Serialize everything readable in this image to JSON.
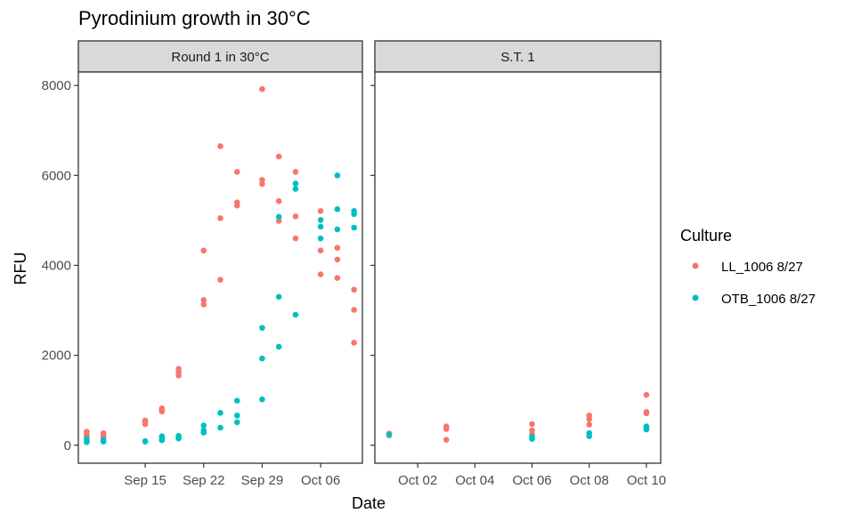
{
  "title": "Pyrodinium growth in 30°C",
  "chart_data": [
    {
      "type": "scatter",
      "facet": "Round 1 in 30°C",
      "xlabel": "Date",
      "ylabel": "RFU",
      "ylim": [
        -400,
        8300
      ],
      "xlim": [
        "2023-09-07",
        "2023-10-11"
      ],
      "yticks": [
        0,
        2000,
        4000,
        6000,
        8000
      ],
      "xticks": [
        {
          "date": "2023-09-15",
          "label": "Sep 15"
        },
        {
          "date": "2023-09-22",
          "label": "Sep 22"
        },
        {
          "date": "2023-09-29",
          "label": "Sep 29"
        },
        {
          "date": "2023-10-06",
          "label": "Oct 06"
        }
      ],
      "series": [
        {
          "name": "LL_1006 8/27",
          "color": "#F8766D",
          "points": [
            [
              "2023-09-08",
              300
            ],
            [
              "2023-09-08",
              250
            ],
            [
              "2023-09-08",
              200
            ],
            [
              "2023-09-10",
              270
            ],
            [
              "2023-09-10",
              220
            ],
            [
              "2023-09-10",
              180
            ],
            [
              "2023-09-15",
              550
            ],
            [
              "2023-09-15",
              500
            ],
            [
              "2023-09-15",
              470
            ],
            [
              "2023-09-17",
              820
            ],
            [
              "2023-09-17",
              780
            ],
            [
              "2023-09-17",
              750
            ],
            [
              "2023-09-19",
              1700
            ],
            [
              "2023-09-19",
              1620
            ],
            [
              "2023-09-19",
              1550
            ],
            [
              "2023-09-22",
              4330
            ],
            [
              "2023-09-22",
              3230
            ],
            [
              "2023-09-22",
              3130
            ],
            [
              "2023-09-24",
              6650
            ],
            [
              "2023-09-24",
              5050
            ],
            [
              "2023-09-24",
              3680
            ],
            [
              "2023-09-26",
              6080
            ],
            [
              "2023-09-26",
              5400
            ],
            [
              "2023-09-26",
              5330
            ],
            [
              "2023-09-29",
              7920
            ],
            [
              "2023-09-29",
              5900
            ],
            [
              "2023-09-29",
              5810
            ],
            [
              "2023-10-01",
              6420
            ],
            [
              "2023-10-01",
              5430
            ],
            [
              "2023-10-01",
              4990
            ],
            [
              "2023-10-03",
              6080
            ],
            [
              "2023-10-03",
              5090
            ],
            [
              "2023-10-03",
              4600
            ],
            [
              "2023-10-06",
              5210
            ],
            [
              "2023-10-06",
              4330
            ],
            [
              "2023-10-06",
              3800
            ],
            [
              "2023-10-08",
              4390
            ],
            [
              "2023-10-08",
              4130
            ],
            [
              "2023-10-08",
              3720
            ],
            [
              "2023-10-10",
              3460
            ],
            [
              "2023-10-10",
              3010
            ],
            [
              "2023-10-10",
              2280
            ]
          ]
        },
        {
          "name": "OTB_1006 8/27",
          "color": "#00BFC4",
          "points": [
            [
              "2023-09-08",
              140
            ],
            [
              "2023-09-08",
              90
            ],
            [
              "2023-09-08",
              70
            ],
            [
              "2023-09-10",
              120
            ],
            [
              "2023-09-10",
              80
            ],
            [
              "2023-09-15",
              90
            ],
            [
              "2023-09-15",
              80
            ],
            [
              "2023-09-17",
              200
            ],
            [
              "2023-09-17",
              140
            ],
            [
              "2023-09-17",
              110
            ],
            [
              "2023-09-19",
              210
            ],
            [
              "2023-09-19",
              170
            ],
            [
              "2023-09-19",
              150
            ],
            [
              "2023-09-22",
              440
            ],
            [
              "2023-09-22",
              330
            ],
            [
              "2023-09-22",
              280
            ],
            [
              "2023-09-24",
              720
            ],
            [
              "2023-09-24",
              390
            ],
            [
              "2023-09-26",
              990
            ],
            [
              "2023-09-26",
              660
            ],
            [
              "2023-09-26",
              510
            ],
            [
              "2023-09-29",
              2610
            ],
            [
              "2023-09-29",
              1930
            ],
            [
              "2023-09-29",
              1020
            ],
            [
              "2023-10-01",
              5080
            ],
            [
              "2023-10-01",
              3300
            ],
            [
              "2023-10-01",
              2190
            ],
            [
              "2023-10-03",
              5820
            ],
            [
              "2023-10-03",
              5700
            ],
            [
              "2023-10-03",
              2900
            ],
            [
              "2023-10-06",
              5010
            ],
            [
              "2023-10-06",
              4860
            ],
            [
              "2023-10-06",
              4600
            ],
            [
              "2023-10-08",
              6000
            ],
            [
              "2023-10-08",
              5250
            ],
            [
              "2023-10-08",
              4800
            ],
            [
              "2023-10-10",
              5210
            ],
            [
              "2023-10-10",
              5140
            ],
            [
              "2023-10-10",
              4840
            ]
          ]
        }
      ]
    },
    {
      "type": "scatter",
      "facet": "S.T. 1",
      "xlabel": "Date",
      "ylabel": "RFU",
      "ylim": [
        -400,
        8300
      ],
      "xlim": [
        "2023-09-30T12:00",
        "2023-10-10T12:00"
      ],
      "yticks": [
        0,
        2000,
        4000,
        6000,
        8000
      ],
      "xticks": [
        {
          "date": "2023-10-02",
          "label": "Oct 02"
        },
        {
          "date": "2023-10-04",
          "label": "Oct 04"
        },
        {
          "date": "2023-10-06",
          "label": "Oct 06"
        },
        {
          "date": "2023-10-08",
          "label": "Oct 08"
        },
        {
          "date": "2023-10-10",
          "label": "Oct 10"
        }
      ],
      "series": [
        {
          "name": "LL_1006 8/27",
          "color": "#F8766D",
          "points": [
            [
              "2023-10-01",
              260
            ],
            [
              "2023-10-01",
              220
            ],
            [
              "2023-10-03",
              420
            ],
            [
              "2023-10-03",
              360
            ],
            [
              "2023-10-03",
              120
            ],
            [
              "2023-10-06",
              470
            ],
            [
              "2023-10-06",
              330
            ],
            [
              "2023-10-06",
              240
            ],
            [
              "2023-10-08",
              660
            ],
            [
              "2023-10-08",
              580
            ],
            [
              "2023-10-08",
              460
            ],
            [
              "2023-10-10",
              1120
            ],
            [
              "2023-10-10",
              740
            ],
            [
              "2023-10-10",
              710
            ]
          ]
        },
        {
          "name": "OTB_1006 8/27",
          "color": "#00BFC4",
          "points": [
            [
              "2023-10-01",
              230
            ],
            [
              "2023-10-06",
              190
            ],
            [
              "2023-10-06",
              140
            ],
            [
              "2023-10-08",
              270
            ],
            [
              "2023-10-08",
              200
            ],
            [
              "2023-10-10",
              420
            ],
            [
              "2023-10-10",
              380
            ],
            [
              "2023-10-10",
              350
            ]
          ]
        }
      ]
    }
  ],
  "legend": {
    "title": "Culture",
    "placement": "right",
    "items": [
      {
        "label": "LL_1006 8/27",
        "color": "#F8766D"
      },
      {
        "label": "OTB_1006 8/27",
        "color": "#00BFC4"
      }
    ]
  }
}
